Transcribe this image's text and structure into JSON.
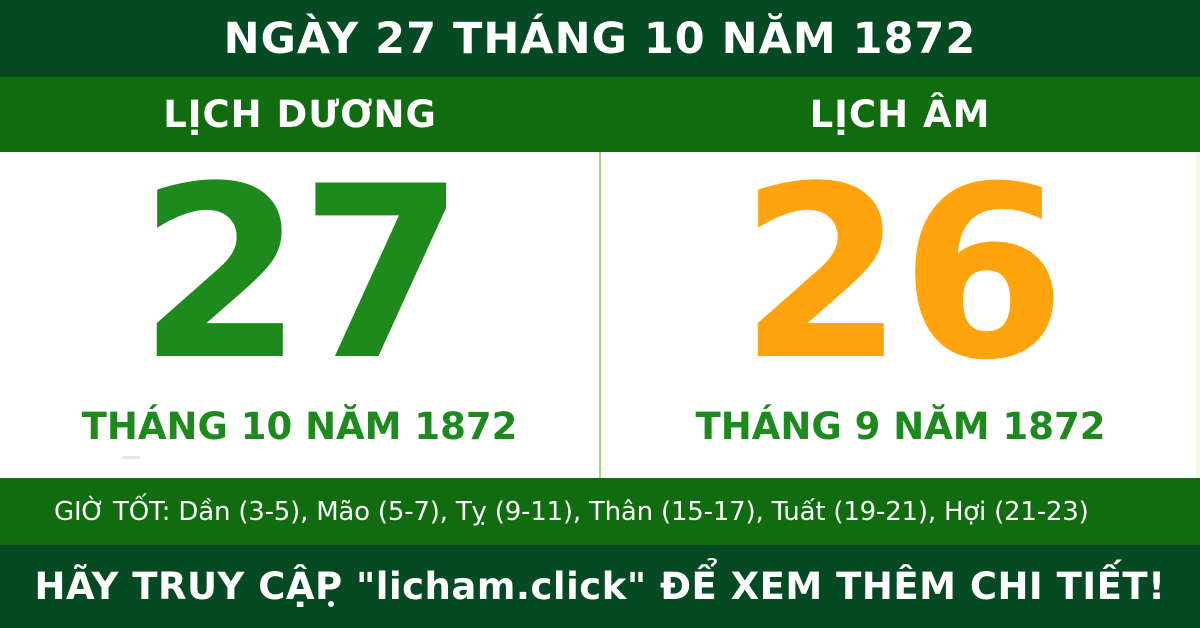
{
  "colors": {
    "dark_green": "#064A23",
    "medium_green": "#116C10",
    "solar_green": "#1E8A1E",
    "lunar_orange": "#FFA40E",
    "divider_green": "#A9D47F",
    "card_bg": "#FFFFFF",
    "white": "#FFFFFF"
  },
  "header": {
    "title": "NGÀY 27 THÁNG 10 NĂM 1872"
  },
  "columns": {
    "solar": {
      "label": "LỊCH DƯƠNG",
      "day": "27",
      "month_year": "THÁNG 10 NĂM 1872"
    },
    "lunar": {
      "label": "LỊCH ÂM",
      "day": "26",
      "month_year": "THÁNG 9 NĂM 1872"
    }
  },
  "good_hours": {
    "text": "GIỜ TỐT: Dần (3-5), Mão (5-7), Tỵ (9-11), Thân (15-17), Tuất (19-21), Hợi (21-23)"
  },
  "footer": {
    "text": "HÃY TRUY CẬP \"licham.click\" ĐỂ XEM THÊM CHI TIẾT!"
  }
}
